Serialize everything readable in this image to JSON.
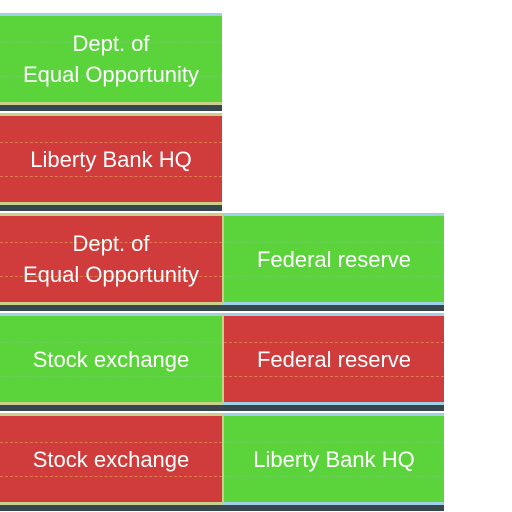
{
  "colors": {
    "green": "#5ad43a",
    "red": "#d03c3c",
    "edge_blue": "#9fd0e8",
    "edge_khaki": "#c8d08a"
  },
  "left_column": [
    {
      "label": "Dept. of\nEqual Opportunity",
      "color": "green"
    },
    {
      "label": "Liberty Bank HQ",
      "color": "red"
    },
    {
      "label": "Dept. of\nEqual Opportunity",
      "color": "red"
    },
    {
      "label": "Stock exchange",
      "color": "green"
    },
    {
      "label": "Stock exchange",
      "color": "red"
    }
  ],
  "right_column": [
    {
      "label": "Federal reserve",
      "color": "green"
    },
    {
      "label": "Federal reserve",
      "color": "red"
    },
    {
      "label": "Liberty Bank HQ",
      "color": "green"
    }
  ]
}
